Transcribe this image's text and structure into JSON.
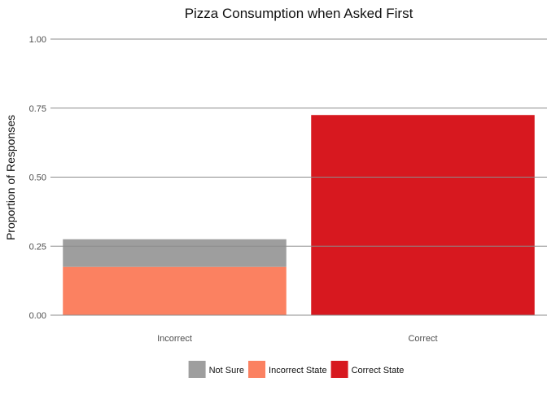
{
  "chart_data": {
    "type": "bar",
    "stacked": true,
    "title": "Pizza Consumption when Asked First",
    "xlabel": "",
    "ylabel": "Proportion of Responses",
    "ylim": [
      0,
      1
    ],
    "yticks": [
      "0.00",
      "0.25",
      "0.50",
      "0.75",
      "1.00"
    ],
    "ytick_values": [
      0,
      0.25,
      0.5,
      0.75,
      1.0
    ],
    "grid": "horizontal major lines only",
    "legend_position": "bottom",
    "categories": [
      "Incorrect",
      "Correct"
    ],
    "series": [
      {
        "name": "Incorrect State",
        "color": "#FB8161",
        "values": [
          0.175,
          0
        ]
      },
      {
        "name": "Not Sure",
        "color": "#9E9E9E",
        "values": [
          0.1,
          0
        ]
      },
      {
        "name": "Correct State",
        "color": "#D7181F",
        "values": [
          0,
          0.725
        ]
      }
    ],
    "legend": [
      {
        "label": "Not Sure",
        "color": "#9E9E9E"
      },
      {
        "label": "Incorrect State",
        "color": "#FB8161"
      },
      {
        "label": "Correct State",
        "color": "#D7181F"
      }
    ],
    "colors": {
      "gridline": "#8C8C8C",
      "text": "#111111",
      "tick_text": "#4d4d4d"
    }
  }
}
